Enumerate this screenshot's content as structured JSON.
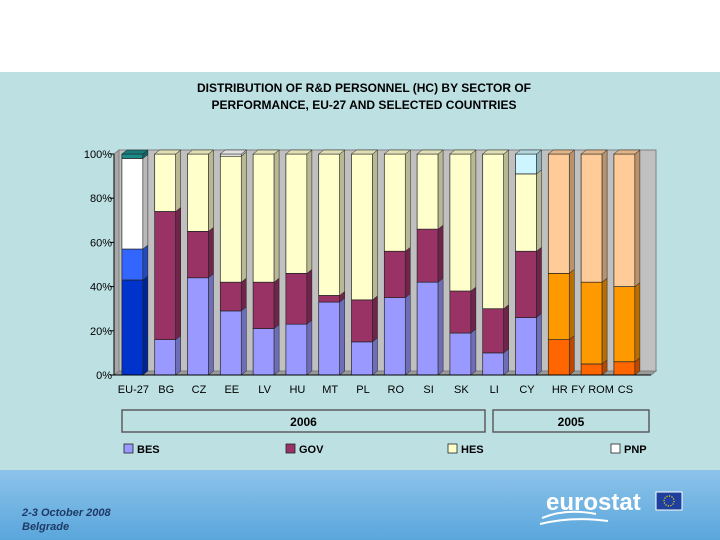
{
  "footer": {
    "line1": "2-3 October 2008",
    "line2": "Belgrade",
    "logo_text": "eurostat"
  },
  "chart_data": {
    "type": "bar",
    "stacked": true,
    "percent": true,
    "title_line1": "DISTRIBUTION OF R&D PERSONNEL (HC) BY SECTOR OF",
    "title_line2": "PERFORMANCE, EU-27 AND SELECTED COUNTRIES",
    "categories": [
      "EU-27",
      "BG",
      "CZ",
      "EE",
      "LV",
      "HU",
      "MT",
      "PL",
      "RO",
      "SI",
      "SK",
      "LI",
      "CY",
      "HR",
      "FYROM",
      "CS"
    ],
    "category_labels": [
      "EU-27",
      "BG",
      "CZ",
      "EE",
      "LV",
      "HU",
      "MT",
      "PL",
      "RO",
      "SI",
      "SK",
      "LI",
      "CY",
      "HR",
      "FY ROM",
      "CS"
    ],
    "year_groups": [
      {
        "label": "2006",
        "from": 0,
        "to": 12
      },
      {
        "label": "2005",
        "from": 13,
        "to": 15
      }
    ],
    "series": [
      {
        "name": "BES",
        "values": [
          43,
          16,
          44,
          29,
          21,
          23,
          33,
          15,
          35,
          42,
          19,
          10,
          26,
          16,
          5,
          6
        ]
      },
      {
        "name": "GOV",
        "values": [
          14,
          58,
          21,
          13,
          21,
          23,
          3,
          19,
          21,
          24,
          19,
          20,
          30,
          30,
          37,
          34
        ]
      },
      {
        "name": "HES",
        "values": [
          41,
          26,
          35,
          57,
          58,
          54,
          64,
          66,
          44,
          34,
          62,
          70,
          35,
          54,
          58,
          60
        ]
      },
      {
        "name": "PNP",
        "values": [
          2,
          0,
          0,
          1,
          0,
          0,
          0,
          0,
          0,
          0,
          0,
          0,
          9,
          0,
          0,
          0
        ]
      }
    ],
    "colors": {
      "BES": "#9999ff",
      "GOV": "#993366",
      "HES": "#ffffcc",
      "PNP": "#ffffff",
      "EU27": {
        "BES": "#0033cc",
        "GOV": "#3366ff",
        "HES": "#ffffff",
        "PNP": "#1b8a8a"
      },
      "CY_PNP": "#ccf5ff",
      "y2005": {
        "BES": "#ff6600",
        "GOV": "#ff9900",
        "HES": "#ffcc99"
      }
    },
    "y_ticks": [
      "0%",
      "20%",
      "40%",
      "60%",
      "80%",
      "100%"
    ],
    "ylim": [
      0,
      100
    ],
    "legend": [
      "BES",
      "GOV",
      "HES",
      "PNP"
    ],
    "legend_position": "bottom",
    "grid": false
  }
}
